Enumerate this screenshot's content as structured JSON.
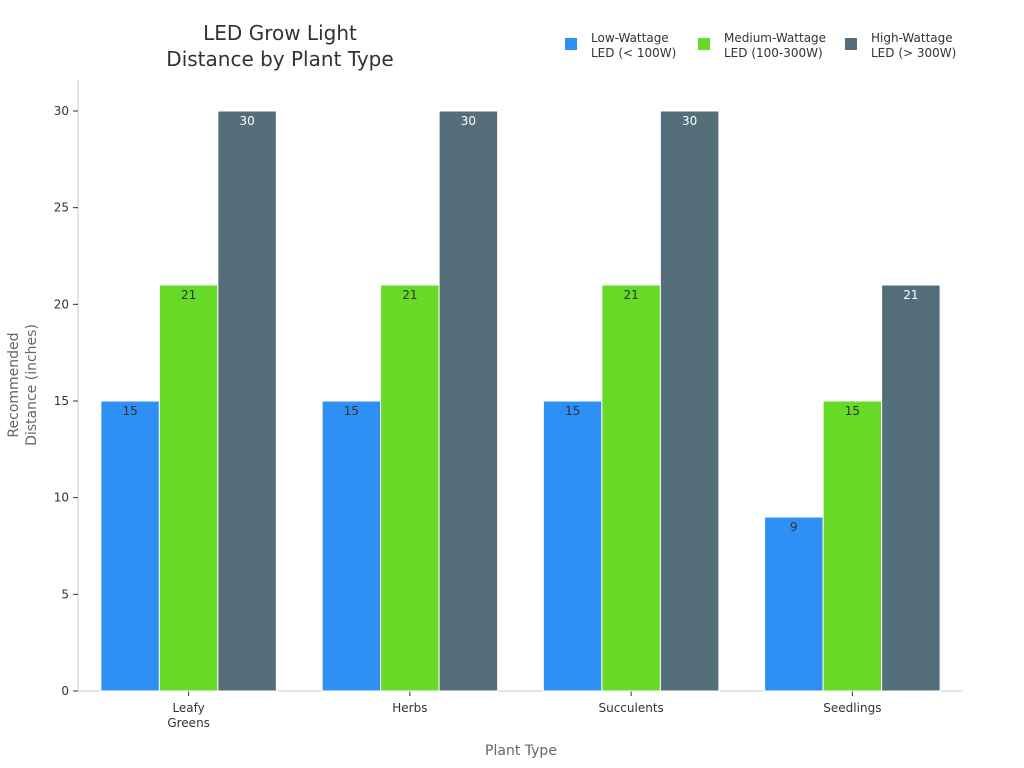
{
  "chart_data": {
    "type": "bar",
    "title_lines": [
      "LED Grow Light",
      "Distance by Plant Type"
    ],
    "xlabel": "Plant Type",
    "ylabel_lines": [
      "Recommended",
      "Distance (inches)"
    ],
    "categories": [
      [
        "Leafy",
        "Greens"
      ],
      [
        "Herbs"
      ],
      [
        "Succulents"
      ],
      [
        "Seedlings"
      ]
    ],
    "ylim": [
      0,
      31.5
    ],
    "yticks": [
      0,
      5,
      10,
      15,
      20,
      25,
      30
    ],
    "grid": false,
    "legend_position": "top-right",
    "series": [
      {
        "name_lines": [
          "Low-Wattage",
          "LED (< 100W)"
        ],
        "color": "#2E90F5",
        "label_color": "#333333",
        "values": [
          15,
          15,
          15,
          9
        ]
      },
      {
        "name_lines": [
          "Medium-Wattage",
          "LED (100-300W)"
        ],
        "color": "#66DA26",
        "label_color": "#333333",
        "values": [
          21,
          21,
          21,
          15
        ]
      },
      {
        "name_lines": [
          "High-Wattage",
          "LED (> 300W)"
        ],
        "color": "#546E7A",
        "label_color": "#ffffff",
        "values": [
          30,
          30,
          30,
          21
        ]
      }
    ]
  }
}
